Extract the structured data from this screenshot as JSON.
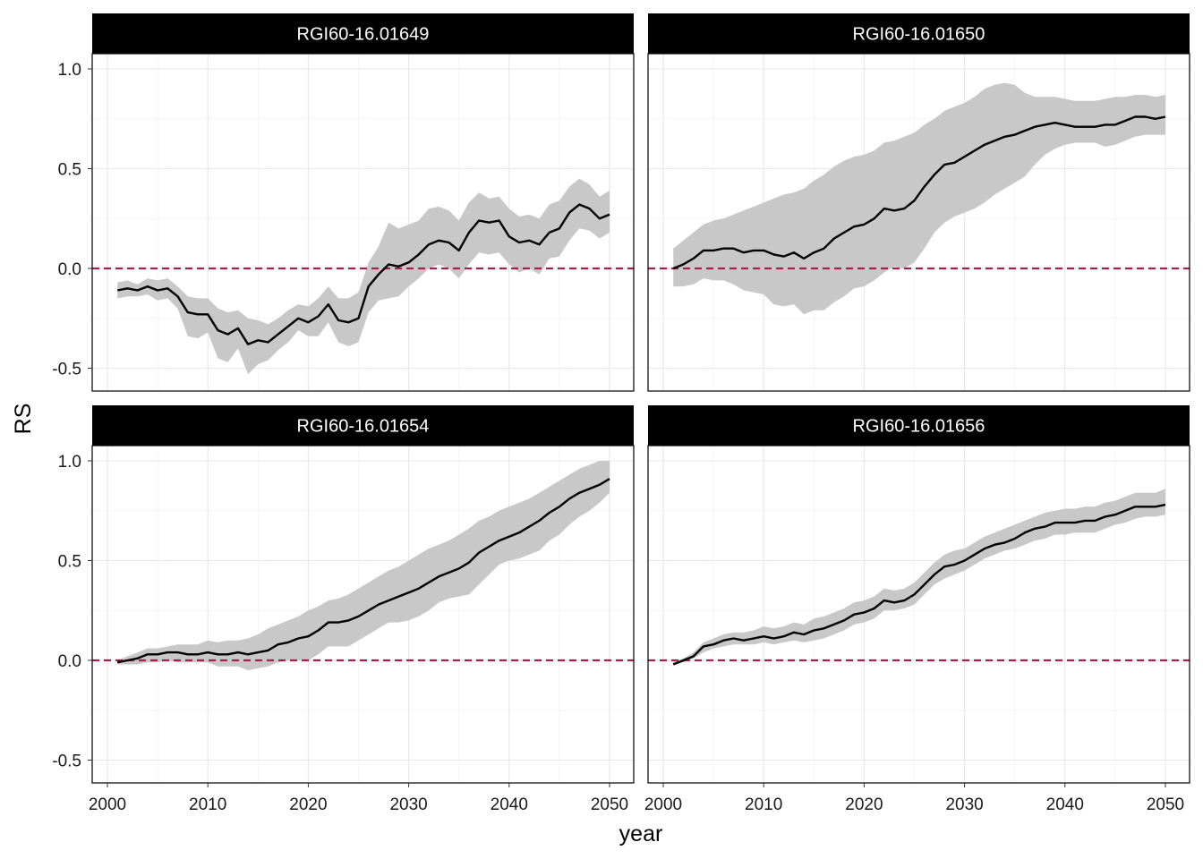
{
  "chart_data": {
    "type": "line",
    "facet_layout": "2x2",
    "xlabel": "year",
    "ylabel": "RS",
    "xlim": [
      2000,
      2050
    ],
    "ylim": [
      -0.6,
      1.08
    ],
    "x_ticks": [
      2000,
      2010,
      2020,
      2030,
      2040,
      2050
    ],
    "x_tick_labels": [
      "2000",
      "2010",
      "2020",
      "2030",
      "2040",
      "2050"
    ],
    "y_ticks": [
      -0.5,
      0.0,
      0.5,
      1.0
    ],
    "y_tick_labels": [
      "-0.5",
      "0.0",
      "0.5",
      "1.0"
    ],
    "grid": true,
    "reference_line": {
      "y": 0,
      "style": "dashed"
    },
    "x": [
      2001,
      2002,
      2003,
      2004,
      2005,
      2006,
      2007,
      2008,
      2009,
      2010,
      2011,
      2012,
      2013,
      2014,
      2015,
      2016,
      2017,
      2018,
      2019,
      2020,
      2021,
      2022,
      2023,
      2024,
      2025,
      2026,
      2027,
      2028,
      2029,
      2030,
      2031,
      2032,
      2033,
      2034,
      2035,
      2036,
      2037,
      2038,
      2039,
      2040,
      2041,
      2042,
      2043,
      2044,
      2045,
      2046,
      2047,
      2048,
      2049,
      2050
    ],
    "panels": [
      {
        "title": "RGI60-16.01649",
        "mean": [
          -0.11,
          -0.1,
          -0.11,
          -0.09,
          -0.11,
          -0.1,
          -0.14,
          -0.22,
          -0.23,
          -0.23,
          -0.31,
          -0.33,
          -0.3,
          -0.38,
          -0.36,
          -0.37,
          -0.33,
          -0.29,
          -0.25,
          -0.27,
          -0.24,
          -0.18,
          -0.26,
          -0.27,
          -0.25,
          -0.09,
          -0.03,
          0.02,
          0.01,
          0.03,
          0.07,
          0.12,
          0.14,
          0.13,
          0.09,
          0.18,
          0.24,
          0.23,
          0.24,
          0.16,
          0.13,
          0.14,
          0.12,
          0.18,
          0.2,
          0.28,
          0.32,
          0.3,
          0.25,
          0.27
        ],
        "lower": [
          -0.15,
          -0.14,
          -0.14,
          -0.13,
          -0.16,
          -0.15,
          -0.2,
          -0.34,
          -0.35,
          -0.32,
          -0.45,
          -0.47,
          -0.4,
          -0.53,
          -0.48,
          -0.46,
          -0.41,
          -0.37,
          -0.31,
          -0.34,
          -0.34,
          -0.27,
          -0.37,
          -0.39,
          -0.37,
          -0.22,
          -0.16,
          -0.15,
          -0.14,
          -0.09,
          -0.05,
          0.0,
          0.02,
          0.0,
          -0.05,
          0.02,
          0.08,
          0.07,
          0.08,
          0.02,
          -0.02,
          0.0,
          -0.03,
          0.05,
          0.06,
          0.14,
          0.2,
          0.19,
          0.15,
          0.18
        ],
        "upper": [
          -0.07,
          -0.06,
          -0.08,
          -0.05,
          -0.06,
          -0.05,
          -0.09,
          -0.14,
          -0.15,
          -0.15,
          -0.2,
          -0.22,
          -0.21,
          -0.25,
          -0.26,
          -0.28,
          -0.25,
          -0.21,
          -0.18,
          -0.19,
          -0.15,
          -0.09,
          -0.15,
          -0.15,
          -0.12,
          0.03,
          0.11,
          0.23,
          0.2,
          0.22,
          0.24,
          0.3,
          0.31,
          0.29,
          0.24,
          0.33,
          0.38,
          0.35,
          0.36,
          0.3,
          0.26,
          0.27,
          0.25,
          0.32,
          0.34,
          0.41,
          0.45,
          0.42,
          0.36,
          0.39
        ]
      },
      {
        "title": "RGI60-16.01650",
        "mean": [
          0.0,
          0.02,
          0.05,
          0.09,
          0.09,
          0.1,
          0.1,
          0.08,
          0.09,
          0.09,
          0.07,
          0.06,
          0.08,
          0.05,
          0.08,
          0.1,
          0.15,
          0.18,
          0.21,
          0.22,
          0.25,
          0.3,
          0.29,
          0.3,
          0.34,
          0.41,
          0.47,
          0.52,
          0.53,
          0.56,
          0.59,
          0.62,
          0.64,
          0.66,
          0.67,
          0.69,
          0.71,
          0.72,
          0.73,
          0.72,
          0.71,
          0.71,
          0.71,
          0.72,
          0.72,
          0.74,
          0.76,
          0.76,
          0.75,
          0.76
        ],
        "lower": [
          -0.09,
          -0.09,
          -0.08,
          -0.05,
          -0.06,
          -0.06,
          -0.08,
          -0.11,
          -0.12,
          -0.13,
          -0.18,
          -0.19,
          -0.18,
          -0.23,
          -0.21,
          -0.21,
          -0.17,
          -0.14,
          -0.1,
          -0.09,
          -0.06,
          -0.02,
          0.01,
          0.0,
          0.03,
          0.1,
          0.18,
          0.23,
          0.26,
          0.28,
          0.3,
          0.33,
          0.37,
          0.4,
          0.43,
          0.46,
          0.52,
          0.57,
          0.6,
          0.62,
          0.63,
          0.63,
          0.63,
          0.61,
          0.62,
          0.64,
          0.66,
          0.67,
          0.67,
          0.67
        ],
        "upper": [
          0.1,
          0.14,
          0.18,
          0.22,
          0.24,
          0.25,
          0.27,
          0.29,
          0.31,
          0.33,
          0.35,
          0.37,
          0.38,
          0.4,
          0.44,
          0.47,
          0.51,
          0.54,
          0.56,
          0.57,
          0.59,
          0.63,
          0.64,
          0.66,
          0.68,
          0.72,
          0.75,
          0.79,
          0.81,
          0.83,
          0.86,
          0.9,
          0.92,
          0.93,
          0.92,
          0.88,
          0.86,
          0.86,
          0.86,
          0.85,
          0.84,
          0.84,
          0.84,
          0.85,
          0.86,
          0.86,
          0.87,
          0.87,
          0.86,
          0.87
        ]
      },
      {
        "title": "RGI60-16.01654",
        "mean": [
          -0.01,
          0.0,
          0.01,
          0.03,
          0.03,
          0.04,
          0.04,
          0.03,
          0.03,
          0.04,
          0.03,
          0.03,
          0.04,
          0.03,
          0.04,
          0.05,
          0.08,
          0.09,
          0.11,
          0.12,
          0.15,
          0.19,
          0.19,
          0.2,
          0.22,
          0.25,
          0.28,
          0.3,
          0.32,
          0.34,
          0.36,
          0.39,
          0.42,
          0.44,
          0.46,
          0.49,
          0.54,
          0.57,
          0.6,
          0.62,
          0.64,
          0.67,
          0.7,
          0.74,
          0.77,
          0.81,
          0.84,
          0.86,
          0.88,
          0.91
        ],
        "lower": [
          -0.02,
          -0.02,
          -0.02,
          -0.01,
          -0.01,
          0.0,
          -0.01,
          -0.01,
          -0.01,
          -0.01,
          -0.03,
          -0.03,
          -0.03,
          -0.05,
          -0.04,
          -0.03,
          -0.01,
          0.0,
          0.0,
          0.0,
          0.03,
          0.07,
          0.07,
          0.07,
          0.1,
          0.13,
          0.16,
          0.19,
          0.19,
          0.2,
          0.22,
          0.25,
          0.29,
          0.31,
          0.32,
          0.33,
          0.38,
          0.43,
          0.48,
          0.5,
          0.51,
          0.53,
          0.55,
          0.6,
          0.63,
          0.68,
          0.72,
          0.75,
          0.79,
          0.84
        ],
        "upper": [
          0.0,
          0.02,
          0.04,
          0.06,
          0.06,
          0.07,
          0.08,
          0.08,
          0.08,
          0.1,
          0.09,
          0.1,
          0.1,
          0.11,
          0.13,
          0.16,
          0.18,
          0.2,
          0.22,
          0.25,
          0.27,
          0.3,
          0.31,
          0.33,
          0.36,
          0.39,
          0.42,
          0.45,
          0.47,
          0.5,
          0.53,
          0.56,
          0.58,
          0.6,
          0.63,
          0.66,
          0.7,
          0.72,
          0.75,
          0.77,
          0.79,
          0.81,
          0.84,
          0.87,
          0.9,
          0.93,
          0.96,
          0.98,
          1.0,
          1.0
        ]
      },
      {
        "title": "RGI60-16.01656",
        "mean": [
          -0.02,
          0.0,
          0.02,
          0.07,
          0.08,
          0.1,
          0.11,
          0.1,
          0.11,
          0.12,
          0.11,
          0.12,
          0.14,
          0.13,
          0.15,
          0.16,
          0.18,
          0.2,
          0.23,
          0.24,
          0.26,
          0.3,
          0.29,
          0.3,
          0.33,
          0.38,
          0.43,
          0.47,
          0.48,
          0.5,
          0.53,
          0.56,
          0.58,
          0.59,
          0.61,
          0.64,
          0.66,
          0.67,
          0.69,
          0.69,
          0.69,
          0.7,
          0.7,
          0.72,
          0.73,
          0.75,
          0.77,
          0.77,
          0.77,
          0.78
        ],
        "lower": [
          -0.02,
          -0.01,
          0.01,
          0.04,
          0.06,
          0.07,
          0.08,
          0.08,
          0.08,
          0.09,
          0.08,
          0.09,
          0.1,
          0.09,
          0.1,
          0.11,
          0.13,
          0.15,
          0.18,
          0.19,
          0.21,
          0.25,
          0.25,
          0.26,
          0.28,
          0.33,
          0.38,
          0.41,
          0.43,
          0.45,
          0.48,
          0.51,
          0.53,
          0.55,
          0.56,
          0.58,
          0.6,
          0.61,
          0.63,
          0.63,
          0.64,
          0.64,
          0.64,
          0.66,
          0.68,
          0.69,
          0.71,
          0.72,
          0.72,
          0.73
        ],
        "upper": [
          -0.01,
          0.01,
          0.04,
          0.09,
          0.11,
          0.13,
          0.14,
          0.14,
          0.15,
          0.17,
          0.16,
          0.17,
          0.19,
          0.18,
          0.21,
          0.22,
          0.24,
          0.26,
          0.29,
          0.3,
          0.32,
          0.36,
          0.35,
          0.36,
          0.39,
          0.44,
          0.49,
          0.53,
          0.55,
          0.56,
          0.59,
          0.62,
          0.64,
          0.66,
          0.68,
          0.7,
          0.72,
          0.74,
          0.75,
          0.76,
          0.76,
          0.77,
          0.77,
          0.79,
          0.8,
          0.82,
          0.84,
          0.84,
          0.84,
          0.86
        ]
      }
    ],
    "colors": {
      "mean_line": "#000000",
      "ribbon": "#c8c8c8",
      "reference_line": "#a6204f",
      "grid_major": "#ebe4e8",
      "grid_minor": "#f6f1f4",
      "strip_background": "#000000",
      "strip_text": "#ffffff",
      "panel_border": "#000000"
    }
  }
}
